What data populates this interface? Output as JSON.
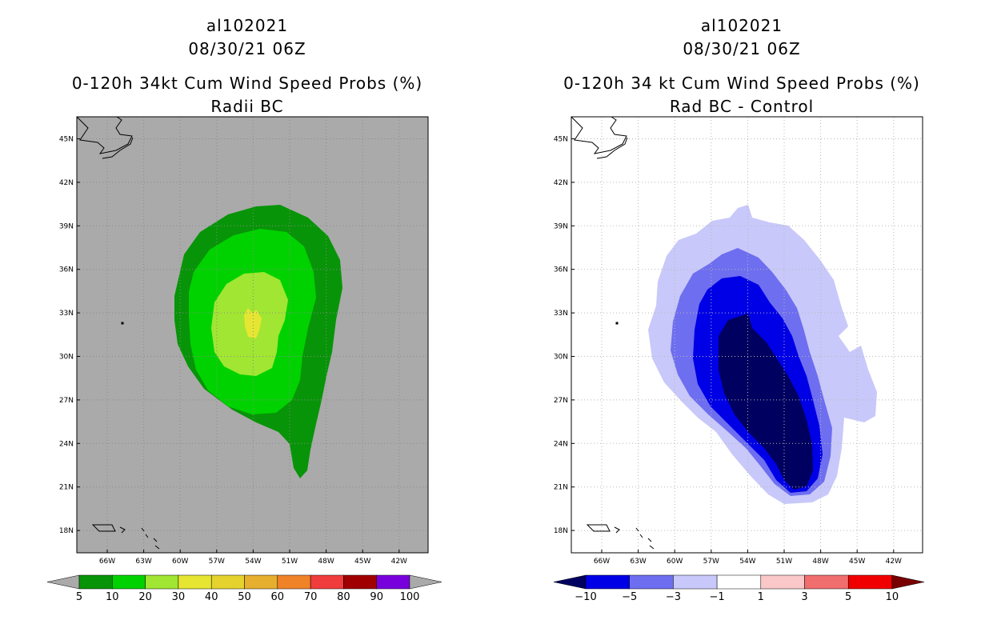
{
  "chart_data": [
    {
      "type": "contour-map",
      "storm_id": "al102021",
      "datetime": "08/30/21 06Z",
      "title": "0-120h 34kt Cum Wind Speed Probs (%)",
      "subtitle": "Radii BC",
      "lat_ticks": [
        "45N",
        "42N",
        "39N",
        "36N",
        "33N",
        "30N",
        "27N",
        "24N",
        "21N",
        "18N"
      ],
      "lon_ticks": [
        "66W",
        "63W",
        "60W",
        "57W",
        "54W",
        "51W",
        "48W",
        "45W",
        "42W"
      ],
      "colorbar": {
        "levels": [
          "5",
          "10",
          "20",
          "30",
          "40",
          "50",
          "60",
          "70",
          "80",
          "90",
          "100"
        ],
        "colors": [
          "#089408",
          "#00d200",
          "#a0e632",
          "#e6e632",
          "#e6d22d",
          "#e6af2d",
          "#f08228",
          "#f03c3c",
          "#a00000",
          "#7800dc"
        ],
        "extend_colors": {
          "low": "#aaaaaa",
          "high": "#aaaaaa"
        }
      },
      "background_color": "#aaaaaa",
      "max_probability_range": "30-40"
    },
    {
      "type": "contour-map",
      "storm_id": "al102021",
      "datetime": "08/30/21 06Z",
      "title": "0-120h 34 kt Cum Wind Speed Probs (%)",
      "subtitle": "Rad BC - Control",
      "lat_ticks": [
        "45N",
        "42N",
        "39N",
        "36N",
        "33N",
        "30N",
        "27N",
        "24N",
        "21N",
        "18N"
      ],
      "lon_ticks": [
        "66W",
        "63W",
        "60W",
        "57W",
        "54W",
        "51W",
        "48W",
        "45W",
        "42W"
      ],
      "colorbar": {
        "levels": [
          "-10",
          "-5",
          "-3",
          "-1",
          "1",
          "3",
          "5",
          "10"
        ],
        "colors": [
          "#0000e6",
          "#6e6ef0",
          "#c8c8fa",
          "#ffffff",
          "#fac8c8",
          "#f06e6e",
          "#f00000"
        ],
        "extend_colors": {
          "low": "#000060",
          "high": "#780000"
        }
      },
      "background_color": "#ffffff",
      "min_difference_range": "below -10"
    }
  ]
}
